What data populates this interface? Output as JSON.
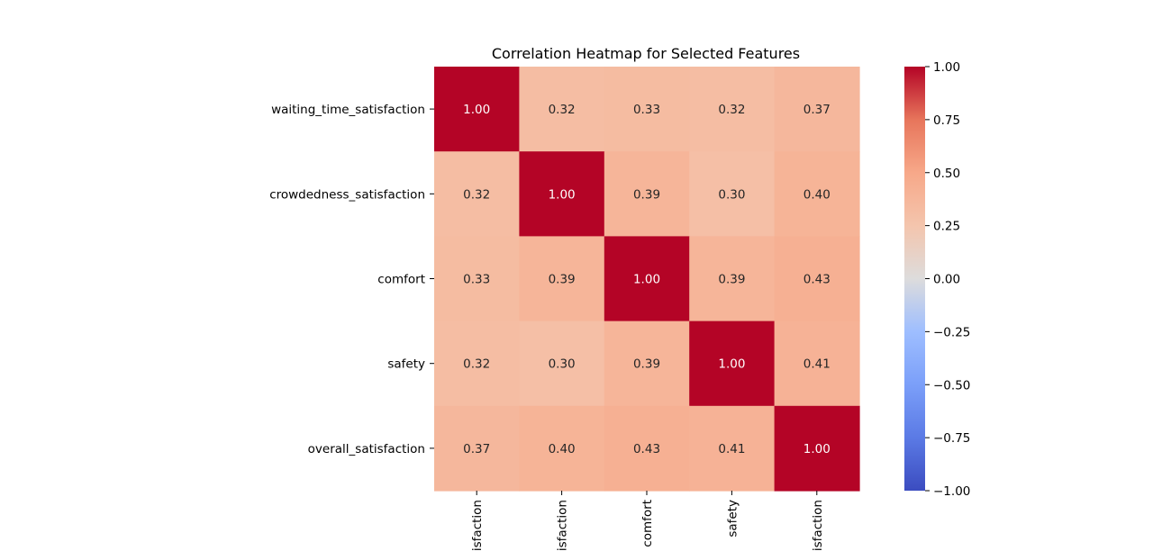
{
  "chart_data": {
    "type": "heatmap",
    "title": "Correlation Heatmap for Selected Features",
    "row_labels": [
      "waiting_time_satisfaction",
      "crowdedness_satisfaction",
      "comfort",
      "safety",
      "overall_satisfaction"
    ],
    "col_labels": [
      "satisfaction",
      "satisfaction",
      "comfort",
      "safety",
      "satisfaction"
    ],
    "values": [
      [
        1.0,
        0.32,
        0.33,
        0.32,
        0.37
      ],
      [
        0.32,
        1.0,
        0.39,
        0.3,
        0.4
      ],
      [
        0.33,
        0.39,
        1.0,
        0.39,
        0.43
      ],
      [
        0.32,
        0.3,
        0.39,
        1.0,
        0.41
      ],
      [
        0.37,
        0.4,
        0.43,
        0.41,
        1.0
      ]
    ],
    "colormap": "coolwarm",
    "vmin": -1.0,
    "vmax": 1.0,
    "colorbar_ticks": [
      "1.00",
      "0.75",
      "0.50",
      "0.25",
      "0.00",
      "−0.25",
      "−0.50",
      "−0.75",
      "−1.00"
    ],
    "colorbar_tick_values": [
      1.0,
      0.75,
      0.5,
      0.25,
      0.0,
      -0.25,
      -0.5,
      -0.75,
      -1.0
    ],
    "annotation_format": "0.00",
    "grid": false
  }
}
